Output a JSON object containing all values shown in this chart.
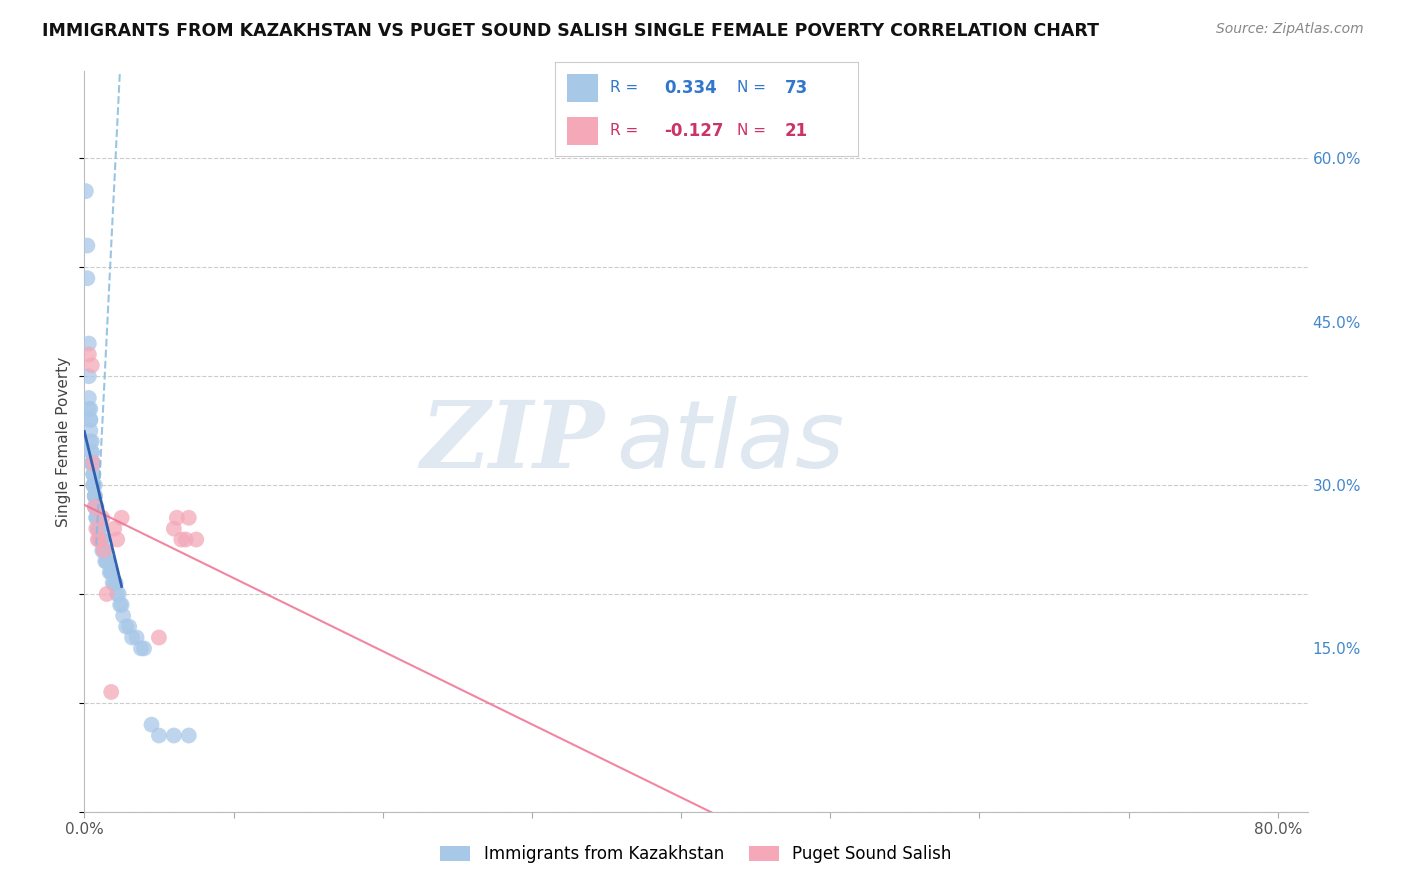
{
  "title": "IMMIGRANTS FROM KAZAKHSTAN VS PUGET SOUND SALISH SINGLE FEMALE POVERTY CORRELATION CHART",
  "source": "Source: ZipAtlas.com",
  "ylabel": "Single Female Poverty",
  "xlim": [
    0.0,
    0.82
  ],
  "ylim": [
    0.0,
    0.68
  ],
  "xtick_positions": [
    0.0,
    0.1,
    0.2,
    0.3,
    0.4,
    0.5,
    0.6,
    0.7,
    0.8
  ],
  "xticklabels": [
    "0.0%",
    "",
    "",
    "",
    "",
    "",
    "",
    "",
    "80.0%"
  ],
  "ytick_right_vals": [
    0.15,
    0.3,
    0.45,
    0.6
  ],
  "ytick_right_labels": [
    "15.0%",
    "30.0%",
    "45.0%",
    "60.0%"
  ],
  "grid_color": "#cccccc",
  "background_color": "#ffffff",
  "blue_scatter_color": "#a8c8e8",
  "pink_scatter_color": "#f4a8b8",
  "blue_line_color": "#2255aa",
  "blue_dash_color": "#88bbdd",
  "pink_line_color": "#f07090",
  "legend_label_blue": "Immigrants from Kazakhstan",
  "legend_label_pink": "Puget Sound Salish",
  "watermark_zip": "ZIP",
  "watermark_atlas": "atlas",
  "blue_points_x": [
    0.001,
    0.002,
    0.002,
    0.003,
    0.003,
    0.003,
    0.003,
    0.004,
    0.004,
    0.004,
    0.004,
    0.004,
    0.005,
    0.005,
    0.005,
    0.005,
    0.005,
    0.006,
    0.006,
    0.006,
    0.006,
    0.006,
    0.007,
    0.007,
    0.007,
    0.007,
    0.007,
    0.008,
    0.008,
    0.008,
    0.008,
    0.009,
    0.009,
    0.009,
    0.01,
    0.01,
    0.01,
    0.01,
    0.011,
    0.011,
    0.011,
    0.012,
    0.012,
    0.012,
    0.013,
    0.013,
    0.014,
    0.014,
    0.015,
    0.015,
    0.016,
    0.017,
    0.018,
    0.018,
    0.019,
    0.02,
    0.021,
    0.022,
    0.023,
    0.024,
    0.025,
    0.026,
    0.028,
    0.03,
    0.032,
    0.035,
    0.038,
    0.04,
    0.045,
    0.05,
    0.06,
    0.07
  ],
  "blue_points_y": [
    0.57,
    0.52,
    0.49,
    0.43,
    0.4,
    0.38,
    0.37,
    0.37,
    0.36,
    0.36,
    0.35,
    0.34,
    0.34,
    0.33,
    0.33,
    0.32,
    0.32,
    0.32,
    0.31,
    0.31,
    0.3,
    0.3,
    0.3,
    0.29,
    0.29,
    0.29,
    0.28,
    0.28,
    0.28,
    0.27,
    0.27,
    0.27,
    0.27,
    0.26,
    0.26,
    0.26,
    0.26,
    0.25,
    0.25,
    0.25,
    0.25,
    0.25,
    0.25,
    0.24,
    0.24,
    0.24,
    0.24,
    0.23,
    0.23,
    0.23,
    0.23,
    0.22,
    0.22,
    0.22,
    0.21,
    0.21,
    0.21,
    0.2,
    0.2,
    0.19,
    0.19,
    0.18,
    0.17,
    0.17,
    0.16,
    0.16,
    0.15,
    0.15,
    0.08,
    0.07,
    0.07,
    0.07
  ],
  "pink_points_x": [
    0.003,
    0.005,
    0.006,
    0.007,
    0.008,
    0.009,
    0.01,
    0.012,
    0.013,
    0.015,
    0.018,
    0.02,
    0.022,
    0.025,
    0.05,
    0.06,
    0.062,
    0.065,
    0.068,
    0.07,
    0.075
  ],
  "pink_points_y": [
    0.42,
    0.41,
    0.32,
    0.28,
    0.26,
    0.25,
    0.25,
    0.27,
    0.24,
    0.2,
    0.11,
    0.26,
    0.25,
    0.27,
    0.16,
    0.26,
    0.27,
    0.25,
    0.25,
    0.27,
    0.25
  ]
}
